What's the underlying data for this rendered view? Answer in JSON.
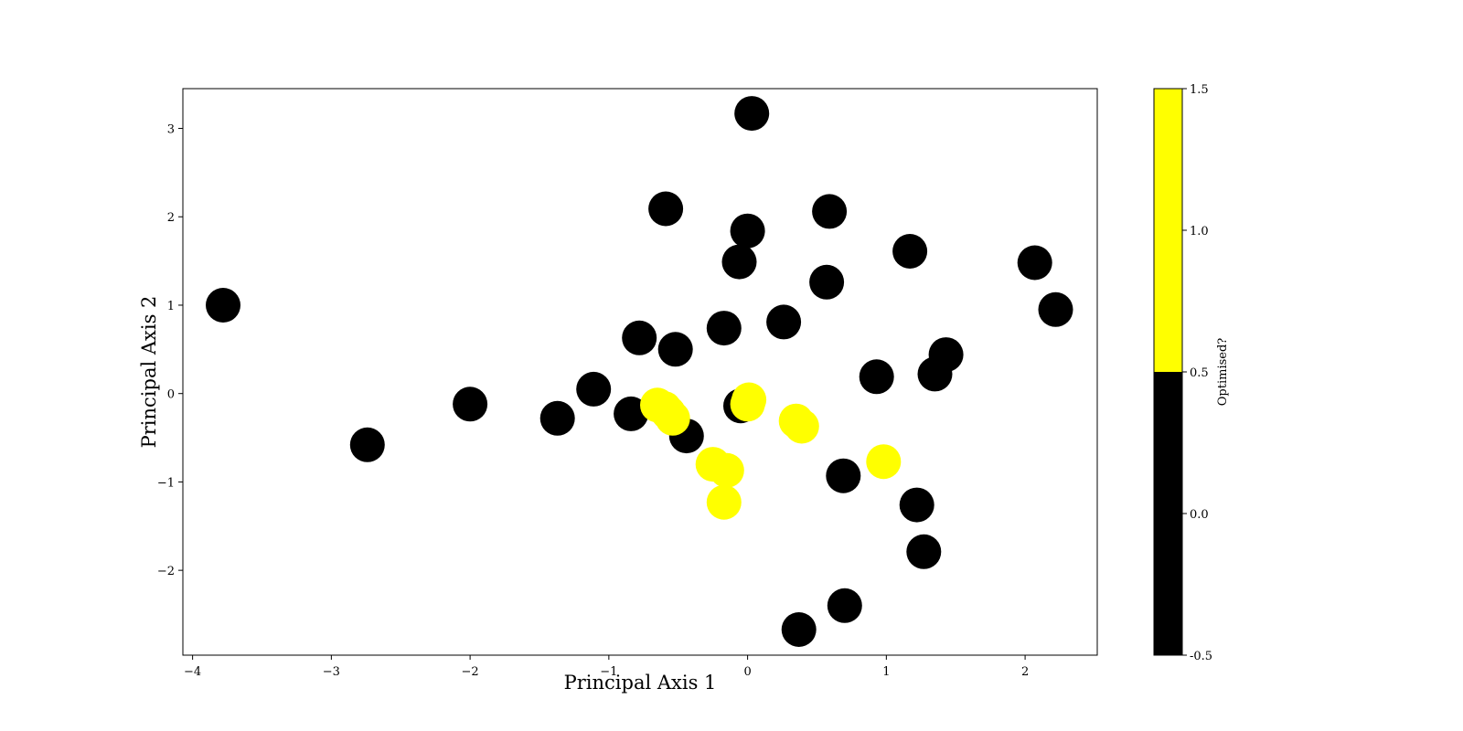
{
  "chart_data": {
    "type": "scatter",
    "title": "",
    "xlabel": "Principal Axis 1",
    "ylabel": "Principal Axis 2",
    "xlim": [
      -4.07,
      2.52
    ],
    "ylim": [
      -2.96,
      3.45
    ],
    "x_ticks": [
      -4,
      -3,
      -2,
      -1,
      0,
      1,
      2
    ],
    "y_ticks": [
      -2,
      -1,
      0,
      1,
      2,
      3
    ],
    "x_tick_labels": [
      "−4",
      "−3",
      "−2",
      "−1",
      "0",
      "1",
      "2"
    ],
    "y_tick_labels": [
      "−2",
      "−1",
      "0",
      "1",
      "2",
      "3"
    ],
    "grid": false,
    "colorbar": {
      "label": "Optimised?",
      "range": [
        -0.5,
        1.5
      ],
      "ticks": [
        -0.5,
        0.0,
        0.5,
        1.0,
        1.5
      ],
      "tick_labels": [
        "-0.5",
        "0.0",
        "0.5",
        "1.0",
        "1.5"
      ],
      "segments": [
        {
          "from": -0.5,
          "to": 0.5,
          "color": "#000000"
        },
        {
          "from": 0.5,
          "to": 1.5,
          "color": "#ffff00"
        }
      ]
    },
    "colors": {
      "0": "#000000",
      "1": "#ffff00"
    },
    "points": [
      {
        "x": -3.78,
        "y": 1.0,
        "c": 0
      },
      {
        "x": -2.74,
        "y": -0.58,
        "c": 0
      },
      {
        "x": -2.0,
        "y": -0.12,
        "c": 0
      },
      {
        "x": -1.37,
        "y": -0.28,
        "c": 0
      },
      {
        "x": -1.11,
        "y": 0.05,
        "c": 0
      },
      {
        "x": -0.84,
        "y": -0.23,
        "c": 0
      },
      {
        "x": -0.78,
        "y": 0.63,
        "c": 0
      },
      {
        "x": -0.59,
        "y": 2.09,
        "c": 0
      },
      {
        "x": -0.52,
        "y": 0.5,
        "c": 0
      },
      {
        "x": -0.44,
        "y": -0.48,
        "c": 0
      },
      {
        "x": -0.17,
        "y": 0.74,
        "c": 0
      },
      {
        "x": -0.06,
        "y": 1.49,
        "c": 0
      },
      {
        "x": -0.05,
        "y": -0.14,
        "c": 0
      },
      {
        "x": 0.0,
        "y": 1.84,
        "c": 0
      },
      {
        "x": 0.03,
        "y": 3.17,
        "c": 0
      },
      {
        "x": 0.26,
        "y": 0.81,
        "c": 0
      },
      {
        "x": 0.37,
        "y": -2.67,
        "c": 0
      },
      {
        "x": 0.57,
        "y": 1.26,
        "c": 0
      },
      {
        "x": 0.59,
        "y": 2.06,
        "c": 0
      },
      {
        "x": 0.69,
        "y": -0.93,
        "c": 0
      },
      {
        "x": 0.7,
        "y": -2.4,
        "c": 0
      },
      {
        "x": 0.93,
        "y": 0.19,
        "c": 0
      },
      {
        "x": 1.17,
        "y": 1.61,
        "c": 0
      },
      {
        "x": 1.22,
        "y": -1.26,
        "c": 0
      },
      {
        "x": 1.27,
        "y": -1.79,
        "c": 0
      },
      {
        "x": 1.35,
        "y": 0.22,
        "c": 0
      },
      {
        "x": 1.43,
        "y": 0.44,
        "c": 0
      },
      {
        "x": 2.07,
        "y": 1.48,
        "c": 0
      },
      {
        "x": 2.22,
        "y": 0.95,
        "c": 0
      },
      {
        "x": -0.65,
        "y": -0.13,
        "c": 1
      },
      {
        "x": -0.6,
        "y": -0.17,
        "c": 1
      },
      {
        "x": -0.57,
        "y": -0.22,
        "c": 1
      },
      {
        "x": -0.54,
        "y": -0.28,
        "c": 1
      },
      {
        "x": -0.25,
        "y": -0.8,
        "c": 1
      },
      {
        "x": -0.15,
        "y": -0.87,
        "c": 1
      },
      {
        "x": -0.17,
        "y": -1.23,
        "c": 1
      },
      {
        "x": 0.0,
        "y": -0.12,
        "c": 1
      },
      {
        "x": 0.01,
        "y": -0.07,
        "c": 1
      },
      {
        "x": 0.35,
        "y": -0.31,
        "c": 1
      },
      {
        "x": 0.39,
        "y": -0.37,
        "c": 1
      },
      {
        "x": 0.98,
        "y": -0.77,
        "c": 1
      }
    ]
  }
}
